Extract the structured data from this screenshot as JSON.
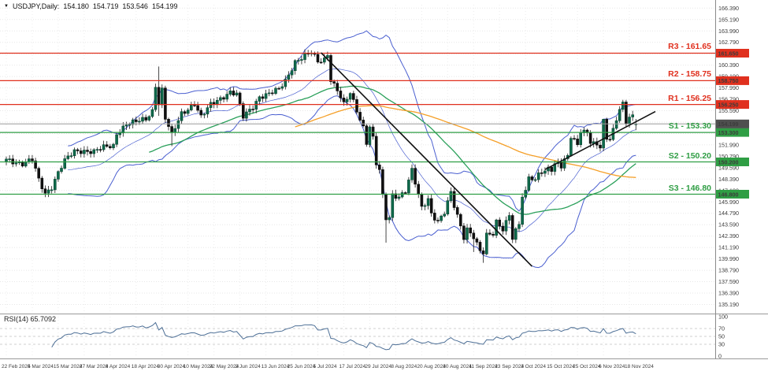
{
  "quote": {
    "marker": "▼",
    "symbol": "USDJPY,Daily:",
    "open": "154.180",
    "high": "154.719",
    "low": "153.546",
    "close": "154.199"
  },
  "chart_data": {
    "type": "candlestick",
    "symbol": "USDJPY",
    "timeframe": "Daily",
    "bar_count": 195,
    "current_price": {
      "price": 154.199,
      "badge": "154.199",
      "line_color": "#9a9a9a",
      "badge_color": "#4f4f4f"
    },
    "levels": [
      {
        "name": "R3",
        "label": "R3 - 161.65",
        "price": 161.65,
        "axis_badge": "161.650",
        "color": "#e0301e",
        "kind": "resistance"
      },
      {
        "name": "R2",
        "label": "R2 - 158.75",
        "price": 158.75,
        "axis_badge": "158.750",
        "color": "#e0301e",
        "kind": "resistance"
      },
      {
        "name": "R1",
        "label": "R1 - 156.25",
        "price": 156.25,
        "axis_badge": "156.250",
        "color": "#e0301e",
        "kind": "resistance"
      },
      {
        "name": "S1",
        "label": "S1 - 153.30",
        "price": 153.3,
        "axis_badge": "153.300",
        "color": "#2f9e44",
        "kind": "support"
      },
      {
        "name": "S2",
        "label": "S2 - 150.20",
        "price": 150.2,
        "axis_badge": "150.200",
        "color": "#2f9e44",
        "kind": "support"
      },
      {
        "name": "S3",
        "label": "S3 - 146.80",
        "price": 146.8,
        "axis_badge": "146.800",
        "color": "#2f9e44",
        "kind": "support"
      }
    ],
    "close_keypoints": [
      [
        0,
        150.5
      ],
      [
        3,
        150.2
      ],
      [
        5,
        150.0
      ],
      [
        8,
        150.4
      ],
      [
        10,
        148.3
      ],
      [
        12,
        146.9
      ],
      [
        14,
        147.6
      ],
      [
        16,
        149.1
      ],
      [
        18,
        150.3
      ],
      [
        21,
        151.3
      ],
      [
        24,
        151.4
      ],
      [
        27,
        151.3
      ],
      [
        30,
        151.7
      ],
      [
        33,
        151.9
      ],
      [
        34,
        153.2
      ],
      [
        37,
        154.2
      ],
      [
        40,
        154.4
      ],
      [
        43,
        154.7
      ],
      [
        45,
        155.6
      ],
      [
        46,
        158.3
      ],
      [
        47,
        156.4
      ],
      [
        48,
        157.8
      ],
      [
        49,
        154.8
      ],
      [
        51,
        153.0
      ],
      [
        54,
        155.3
      ],
      [
        56,
        155.8
      ],
      [
        58,
        156.4
      ],
      [
        60,
        154.9
      ],
      [
        63,
        156.2
      ],
      [
        66,
        156.9
      ],
      [
        69,
        157.6
      ],
      [
        71,
        157.3
      ],
      [
        73,
        154.9
      ],
      [
        76,
        156.0
      ],
      [
        78,
        157.1
      ],
      [
        81,
        157.4
      ],
      [
        84,
        157.8
      ],
      [
        86,
        158.7
      ],
      [
        89,
        160.8
      ],
      [
        92,
        161.4
      ],
      [
        94,
        161.7
      ],
      [
        96,
        160.7
      ],
      [
        98,
        161.0
      ],
      [
        99,
        161.6
      ],
      [
        100,
        158.9
      ],
      [
        102,
        157.8
      ],
      [
        104,
        156.2
      ],
      [
        106,
        157.4
      ],
      [
        108,
        155.6
      ],
      [
        110,
        153.9
      ],
      [
        111,
        152.3
      ],
      [
        112,
        154.0
      ],
      [
        113,
        152.7
      ],
      [
        114,
        150.0
      ],
      [
        115,
        149.3
      ],
      [
        116,
        146.5
      ],
      [
        117,
        144.2
      ],
      [
        118,
        144.3
      ],
      [
        119,
        146.7
      ],
      [
        121,
        146.6
      ],
      [
        123,
        147.2
      ],
      [
        125,
        149.3
      ],
      [
        127,
        146.6
      ],
      [
        128,
        145.3
      ],
      [
        130,
        146.3
      ],
      [
        131,
        144.8
      ],
      [
        133,
        144.0
      ],
      [
        135,
        144.9
      ],
      [
        137,
        146.9
      ],
      [
        138,
        145.5
      ],
      [
        140,
        143.4
      ],
      [
        141,
        142.3
      ],
      [
        142,
        143.2
      ],
      [
        144,
        142.4
      ],
      [
        146,
        140.8
      ],
      [
        147,
        140.6
      ],
      [
        148,
        142.4
      ],
      [
        150,
        142.6
      ],
      [
        151,
        143.9
      ],
      [
        153,
        143.2
      ],
      [
        155,
        144.7
      ],
      [
        156,
        142.2
      ],
      [
        158,
        143.6
      ],
      [
        159,
        146.5
      ],
      [
        160,
        146.9
      ],
      [
        161,
        148.7
      ],
      [
        163,
        148.2
      ],
      [
        164,
        149.3
      ],
      [
        166,
        149.1
      ],
      [
        167,
        149.8
      ],
      [
        168,
        149.2
      ],
      [
        170,
        150.2
      ],
      [
        171,
        149.5
      ],
      [
        173,
        151.1
      ],
      [
        174,
        152.8
      ],
      [
        176,
        152.3
      ],
      [
        177,
        153.3
      ],
      [
        179,
        153.4
      ],
      [
        180,
        152.0
      ],
      [
        182,
        152.1
      ],
      [
        183,
        151.6
      ],
      [
        184,
        154.6
      ],
      [
        185,
        152.9
      ],
      [
        186,
        152.6
      ],
      [
        187,
        153.7
      ],
      [
        188,
        154.8
      ],
      [
        189,
        155.6
      ],
      [
        190,
        156.3
      ],
      [
        191,
        154.3
      ],
      [
        192,
        154.7
      ],
      [
        193,
        155.0
      ],
      [
        194,
        154.199
      ]
    ],
    "wick_overrides": {
      "46": {
        "h": 158.45
      },
      "47": {
        "h": 160.25,
        "l": 155.05
      },
      "51": {
        "l": 151.86
      },
      "94": {
        "h": 161.95
      },
      "99": {
        "h": 161.81
      },
      "117": {
        "l": 141.7
      },
      "144": {
        "l": 140.71
      },
      "147": {
        "l": 139.58
      },
      "156": {
        "l": 141.65
      },
      "184": {
        "h": 154.71
      },
      "190": {
        "h": 156.74
      },
      "194": {
        "o": 154.18,
        "h": 154.719,
        "l": 153.546,
        "c": 154.199
      }
    },
    "indicators": {
      "bollinger": {
        "period": 20,
        "deviation": 2,
        "color": "#4a5fd0"
      },
      "moving_averages": [
        {
          "period": 45,
          "color": "#2aa05a"
        },
        {
          "period": 90,
          "color": "#f59f27"
        }
      ],
      "rsi": {
        "period": 14,
        "label": "RSI(14) 65.7092",
        "value": 65.7092,
        "levels": [
          70,
          50,
          30
        ],
        "color": "#4d6f96"
      }
    },
    "trendlines": [
      {
        "name": "downtrend-line",
        "from_bar": 97,
        "from_price": 161.7,
        "to_bar": 162,
        "to_price": 139.2
      },
      {
        "name": "uptrend-line",
        "from_bar": 166,
        "from_price": 149.4,
        "to_bar": 200,
        "to_price": 155.5
      }
    ],
    "axes": {
      "price_ticks": [
        "166.390",
        "165.190",
        "163.990",
        "162.790",
        "161.590",
        "160.390",
        "159.190",
        "157.990",
        "156.790",
        "155.590",
        "154.390",
        "153.190",
        "151.990",
        "150.790",
        "149.590",
        "148.390",
        "147.190",
        "145.990",
        "144.790",
        "143.590",
        "142.390",
        "141.190",
        "139.990",
        "138.790",
        "137.590",
        "136.390",
        "135.190"
      ],
      "date_labels": [
        "22 Feb 2024",
        "5 Mar 2024",
        "15 Mar 2024",
        "27 Mar 2024",
        "8 Apr 2024",
        "18 Apr 2024",
        "30 Apr 2024",
        "10 May 2024",
        "22 May 2024",
        "3 Jun 2024",
        "13 Jun 2024",
        "25 Jun 2024",
        "5 Jul 2024",
        "17 Jul 2024",
        "29 Jul 2024",
        "8 Aug 2024",
        "20 Aug 2024",
        "30 Aug 2024",
        "11 Sep 2024",
        "23 Sep 2024",
        "3 Oct 2024",
        "15 Oct 2024",
        "25 Oct 2024",
        "6 Nov 2024",
        "18 Nov 2024"
      ],
      "date_step_bars": 8,
      "rsi_ticks": [
        "100",
        "70",
        "50",
        "30",
        "0"
      ]
    },
    "colors": {
      "background": "#ffffff",
      "grid": "#e7e7e7",
      "candle_up": "#0e6a4b",
      "candle_up_border": "#0a4733",
      "candle_down": "#101010",
      "candle_wick": "#1a1a1a",
      "resistance": "#e0301e",
      "support": "#2f9e44",
      "trendline": "#111111",
      "axis_text": "#3c3c3c",
      "separator": "#9a9a9a"
    }
  }
}
